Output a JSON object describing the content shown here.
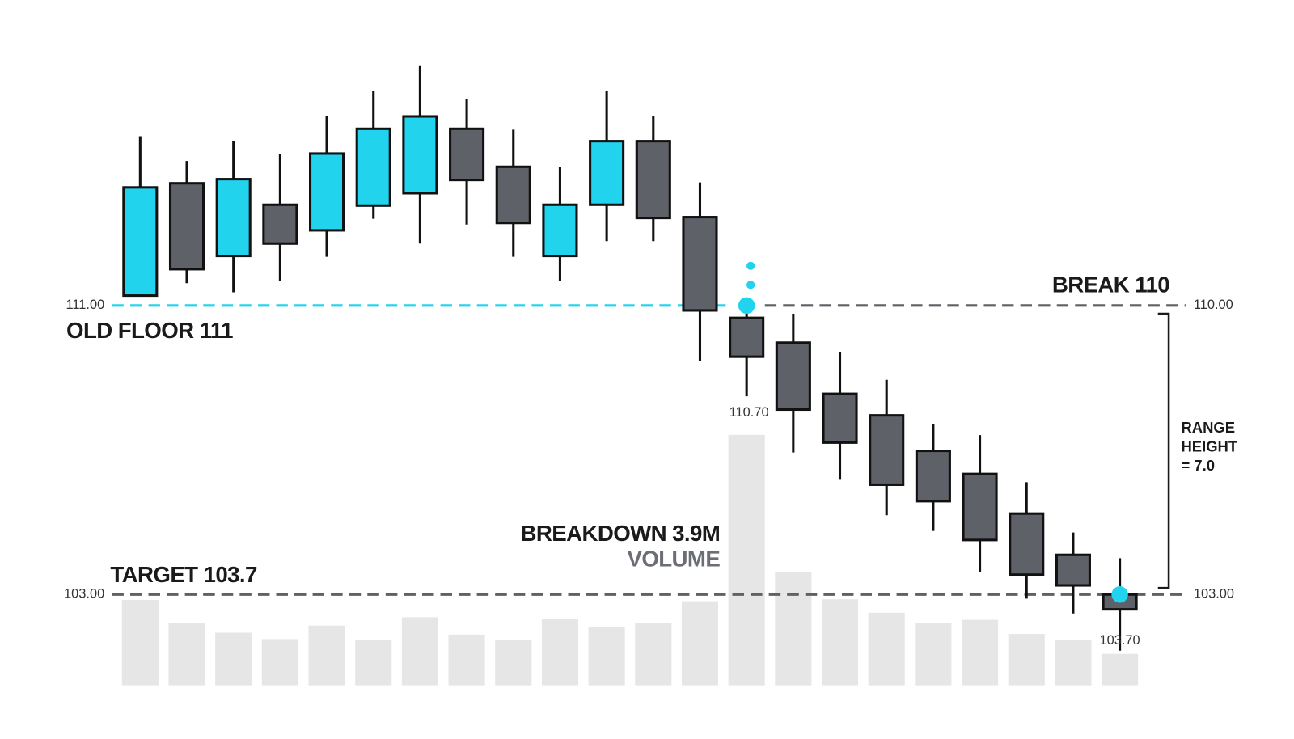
{
  "chart_data": {
    "type": "candlestick",
    "open": [
      110.24,
      112.96,
      111.2,
      112.44,
      111.82,
      112.42,
      112.72,
      114.28,
      113.36,
      111.2,
      112.44,
      113.98,
      112.14,
      109.7,
      109.1,
      107.86,
      107.34,
      106.48,
      105.92,
      104.96,
      103.96,
      103.0
    ],
    "high": [
      114.1,
      113.5,
      113.98,
      113.66,
      114.6,
      115.2,
      115.8,
      115.0,
      114.26,
      113.36,
      115.2,
      114.6,
      112.98,
      110.0,
      109.8,
      108.88,
      108.2,
      107.12,
      106.86,
      105.72,
      104.5,
      103.88
    ],
    "low": [
      110.24,
      110.54,
      110.32,
      110.6,
      111.18,
      112.1,
      111.5,
      111.96,
      111.18,
      110.6,
      111.56,
      111.56,
      108.66,
      107.8,
      106.44,
      105.78,
      104.92,
      104.54,
      103.54,
      102.9,
      102.54,
      101.64
    ],
    "close": [
      112.86,
      110.88,
      113.06,
      111.5,
      113.68,
      114.28,
      114.58,
      113.04,
      112.0,
      112.44,
      113.98,
      112.12,
      109.88,
      108.76,
      107.48,
      106.68,
      105.66,
      105.26,
      104.32,
      103.48,
      103.22,
      102.64
    ],
    "volume": [
      1.33,
      0.97,
      0.82,
      0.72,
      0.93,
      0.71,
      1.06,
      0.79,
      0.71,
      1.03,
      0.91,
      0.97,
      1.31,
      3.9,
      1.76,
      1.34,
      1.13,
      0.97,
      1.02,
      0.8,
      0.71,
      0.49
    ],
    "colors": {
      "up": "#22d3ee",
      "down": "#5f6168",
      "volume": "#e6e6e6",
      "floor": "#22d3ee",
      "grid": "#5f6168"
    },
    "ylim": [
      99,
      119
    ],
    "yticks": [
      {
        "value": 111,
        "label": "111.00"
      },
      {
        "value": 103,
        "label": "103.00"
      }
    ],
    "y2lim": [
      99.5,
      117
    ],
    "y2ticks": [
      {
        "value": 110,
        "label": "110.00"
      },
      {
        "value": 103,
        "label": "103.00"
      }
    ],
    "volume_lim": [
      0,
      4.5
    ],
    "annotations": {
      "old_floor": "OLD FLOOR 111",
      "break": "BREAK 110",
      "target": "TARGET 103.7",
      "breakdown": "BREAKDOWN 3.9M",
      "volume": "VOLUME",
      "break_low": "110.70",
      "target_low": "103.70",
      "range_height": [
        "RANGE",
        "HEIGHT",
        "= 7.0"
      ]
    }
  }
}
